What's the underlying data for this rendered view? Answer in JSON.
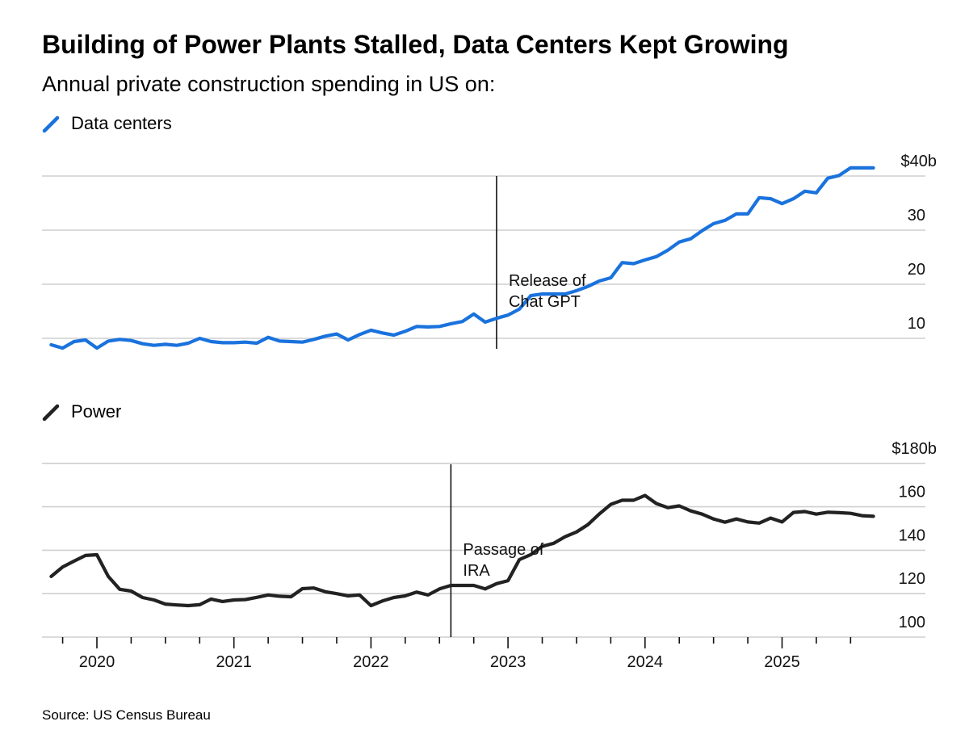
{
  "title": "Building of Power Plants Stalled, Data Centers Kept Growing",
  "subtitle": "Annual private construction spending in US on:",
  "source": "Source: US Census Bureau",
  "colors": {
    "data_centers": "#1a72dd",
    "power": "#222222"
  },
  "chart_data": [
    {
      "type": "line",
      "legend": "Data centers",
      "legend_icon": "diagonal-slash",
      "color": "#1a72dd",
      "ylim": [
        5,
        42
      ],
      "yticks": [
        10,
        20,
        30,
        40
      ],
      "ytick_labels": [
        "10",
        "20",
        "30",
        "$40b"
      ],
      "grid": true,
      "annotation": {
        "date": "2022-12",
        "lines": [
          "Release of",
          "Chat GPT"
        ]
      },
      "series": [
        {
          "name": "Data centers",
          "x": [
            "2019-09",
            "2019-10",
            "2019-11",
            "2019-12",
            "2020-01",
            "2020-02",
            "2020-03",
            "2020-04",
            "2020-05",
            "2020-06",
            "2020-07",
            "2020-08",
            "2020-09",
            "2020-10",
            "2020-11",
            "2020-12",
            "2021-01",
            "2021-02",
            "2021-03",
            "2021-04",
            "2021-05",
            "2021-06",
            "2021-07",
            "2021-08",
            "2021-09",
            "2021-10",
            "2021-11",
            "2021-12",
            "2022-01",
            "2022-02",
            "2022-03",
            "2022-04",
            "2022-05",
            "2022-06",
            "2022-07",
            "2022-08",
            "2022-09",
            "2022-10",
            "2022-11",
            "2022-12",
            "2023-01",
            "2023-02",
            "2023-03",
            "2023-04",
            "2023-05",
            "2023-06",
            "2023-07",
            "2023-08",
            "2023-09",
            "2023-10",
            "2023-11",
            "2023-12",
            "2024-01",
            "2024-02",
            "2024-03",
            "2024-04",
            "2024-05",
            "2024-06",
            "2024-07",
            "2024-08",
            "2024-09",
            "2024-10",
            "2024-11",
            "2024-12",
            "2025-01",
            "2025-02",
            "2025-03",
            "2025-04",
            "2025-05",
            "2025-06",
            "2025-07",
            "2025-08",
            "2025-09"
          ],
          "values": [
            8.8,
            8.2,
            9.4,
            9.7,
            8.2,
            9.5,
            9.8,
            9.6,
            9.0,
            8.7,
            8.9,
            8.7,
            9.1,
            10.0,
            9.4,
            9.2,
            9.2,
            9.3,
            9.1,
            10.2,
            9.5,
            9.4,
            9.3,
            9.8,
            10.4,
            10.8,
            9.7,
            10.7,
            11.5,
            11.0,
            10.6,
            11.3,
            12.2,
            12.1,
            12.2,
            12.7,
            13.1,
            14.5,
            13.0,
            13.7,
            14.3,
            15.4,
            17.9,
            18.2,
            18.2,
            18.2,
            18.8,
            19.6,
            20.6,
            21.2,
            24.0,
            23.8,
            24.5,
            25.1,
            26.3,
            27.8,
            28.4,
            29.9,
            31.2,
            31.8,
            33.0,
            33.0,
            36.0,
            35.8,
            34.9,
            35.8,
            37.2,
            36.9,
            39.6,
            40.1,
            41.5,
            41.5,
            41.5
          ]
        }
      ]
    },
    {
      "type": "line",
      "legend": "Power",
      "legend_icon": "diagonal-slash",
      "color": "#222222",
      "ylim": [
        95,
        180
      ],
      "yticks": [
        100,
        120,
        140,
        160,
        180
      ],
      "ytick_labels": [
        "100",
        "120",
        "140",
        "160",
        "$180b"
      ],
      "xtick_labels": [
        "2020",
        "2021",
        "2022",
        "2023",
        "2024",
        "2025"
      ],
      "grid": true,
      "annotation": {
        "date": "2022-08",
        "lines": [
          "Passage of",
          "IRA"
        ]
      },
      "series": [
        {
          "name": "Power",
          "x": [
            "2019-09",
            "2019-10",
            "2019-11",
            "2019-12",
            "2020-01",
            "2020-02",
            "2020-03",
            "2020-04",
            "2020-05",
            "2020-06",
            "2020-07",
            "2020-08",
            "2020-09",
            "2020-10",
            "2020-11",
            "2020-12",
            "2021-01",
            "2021-02",
            "2021-03",
            "2021-04",
            "2021-05",
            "2021-06",
            "2021-07",
            "2021-08",
            "2021-09",
            "2021-10",
            "2021-11",
            "2021-12",
            "2022-01",
            "2022-02",
            "2022-03",
            "2022-04",
            "2022-05",
            "2022-06",
            "2022-07",
            "2022-08",
            "2022-09",
            "2022-10",
            "2022-11",
            "2022-12",
            "2023-01",
            "2023-02",
            "2023-03",
            "2023-04",
            "2023-05",
            "2023-06",
            "2023-07",
            "2023-08",
            "2023-09",
            "2023-10",
            "2023-11",
            "2023-12",
            "2024-01",
            "2024-02",
            "2024-03",
            "2024-04",
            "2024-05",
            "2024-06",
            "2024-07",
            "2024-08",
            "2024-09",
            "2024-10",
            "2024-11",
            "2024-12",
            "2025-01",
            "2025-02",
            "2025-03",
            "2025-04",
            "2025-05",
            "2025-06",
            "2025-07",
            "2025-08",
            "2025-09"
          ],
          "values": [
            127.9,
            132.3,
            135.0,
            137.6,
            137.9,
            127.9,
            122.0,
            121.2,
            118.2,
            117.1,
            115.2,
            114.8,
            114.5,
            114.9,
            117.5,
            116.4,
            117.1,
            117.3,
            118.3,
            119.4,
            118.8,
            118.6,
            122.3,
            122.6,
            120.9,
            120.0,
            119.0,
            119.4,
            114.5,
            116.6,
            118.2,
            119.0,
            120.7,
            119.4,
            122.2,
            123.8,
            123.8,
            123.8,
            122.2,
            124.6,
            126.0,
            135.7,
            138.0,
            141.8,
            143.2,
            146.2,
            148.4,
            151.8,
            156.7,
            161.1,
            163.0,
            163.0,
            165.2,
            161.5,
            159.6,
            160.4,
            158.1,
            156.6,
            154.4,
            152.9,
            154.4,
            153.0,
            152.5,
            154.8,
            153.0,
            157.4,
            157.8,
            156.6,
            157.5,
            157.3,
            157.0,
            155.9,
            155.6
          ]
        }
      ]
    }
  ]
}
